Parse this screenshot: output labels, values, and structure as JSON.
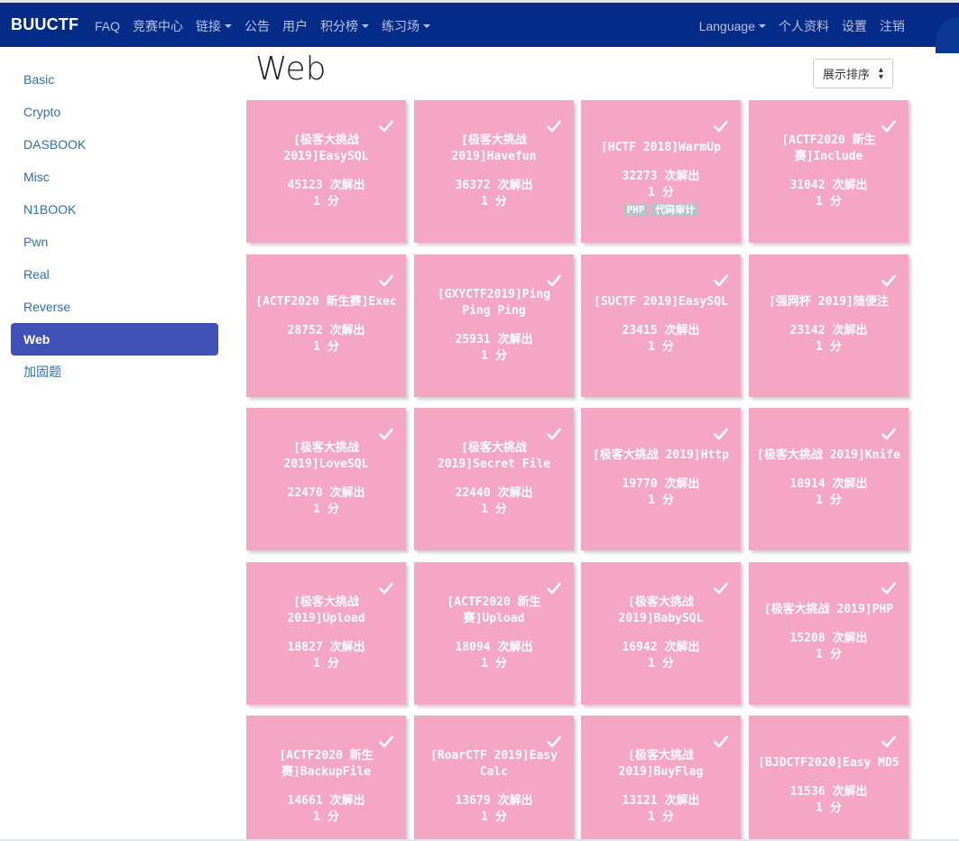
{
  "nav": {
    "brand": "BUUCTF",
    "left": [
      {
        "label": "FAQ",
        "dropdown": false
      },
      {
        "label": "竞赛中心",
        "dropdown": false
      },
      {
        "label": "链接",
        "dropdown": true
      },
      {
        "label": "公告",
        "dropdown": false
      },
      {
        "label": "用户",
        "dropdown": false
      },
      {
        "label": "积分榜",
        "dropdown": true
      },
      {
        "label": "练习场",
        "dropdown": true
      }
    ],
    "right": [
      {
        "label": "Language",
        "dropdown": true
      },
      {
        "label": "个人资料",
        "dropdown": false
      },
      {
        "label": "设置",
        "dropdown": false
      },
      {
        "label": "注销",
        "dropdown": false
      }
    ]
  },
  "sidebar": {
    "items": [
      {
        "label": "Basic",
        "active": false
      },
      {
        "label": "Crypto",
        "active": false
      },
      {
        "label": "DASBOOK",
        "active": false
      },
      {
        "label": "Misc",
        "active": false
      },
      {
        "label": "N1BOOK",
        "active": false
      },
      {
        "label": "Pwn",
        "active": false
      },
      {
        "label": "Real",
        "active": false
      },
      {
        "label": "Reverse",
        "active": false
      },
      {
        "label": "Web",
        "active": true
      },
      {
        "label": "加固题",
        "active": false
      }
    ]
  },
  "main": {
    "title": "Web",
    "sort_label": "展示排序"
  },
  "colors": {
    "navbar": "#052b88",
    "card": "#f4a6c2",
    "active": "#3f51b5",
    "tag": "#b8c2cc"
  },
  "challenges": [
    {
      "name": "[极客大挑战 2019]EasySQL",
      "solves": "45123 次解出",
      "points": "1 分",
      "tags": []
    },
    {
      "name": "[极客大挑战 2019]Havefun",
      "solves": "36372 次解出",
      "points": "1 分",
      "tags": []
    },
    {
      "name": "[HCTF 2018]WarmUp",
      "solves": "32273 次解出",
      "points": "1 分",
      "tags": [
        "PHP",
        "代码审计"
      ]
    },
    {
      "name": "[ACTF2020 新生赛]Include",
      "solves": "31042 次解出",
      "points": "1 分",
      "tags": []
    },
    {
      "name": "[ACTF2020 新生赛]Exec",
      "solves": "28752 次解出",
      "points": "1 分",
      "tags": []
    },
    {
      "name": "[GXYCTF2019]Ping Ping Ping",
      "solves": "25931 次解出",
      "points": "1 分",
      "tags": []
    },
    {
      "name": "[SUCTF 2019]EasySQL",
      "solves": "23415 次解出",
      "points": "1 分",
      "tags": []
    },
    {
      "name": "[强网杯 2019]随便注",
      "solves": "23142 次解出",
      "points": "1 分",
      "tags": []
    },
    {
      "name": "[极客大挑战 2019]LoveSQL",
      "solves": "22470 次解出",
      "points": "1 分",
      "tags": []
    },
    {
      "name": "[极客大挑战 2019]Secret File",
      "solves": "22440 次解出",
      "points": "1 分",
      "tags": []
    },
    {
      "name": "[极客大挑战 2019]Http",
      "solves": "19770 次解出",
      "points": "1 分",
      "tags": []
    },
    {
      "name": "[极客大挑战 2019]Knife",
      "solves": "18914 次解出",
      "points": "1 分",
      "tags": []
    },
    {
      "name": "[极客大挑战 2019]Upload",
      "solves": "18827 次解出",
      "points": "1 分",
      "tags": []
    },
    {
      "name": "[ACTF2020 新生赛]Upload",
      "solves": "18094 次解出",
      "points": "1 分",
      "tags": []
    },
    {
      "name": "[极客大挑战 2019]BabySQL",
      "solves": "16942 次解出",
      "points": "1 分",
      "tags": []
    },
    {
      "name": "[极客大挑战 2019]PHP",
      "solves": "15208 次解出",
      "points": "1 分",
      "tags": []
    },
    {
      "name": "[ACTF2020 新生赛]BackupFile",
      "solves": "14661 次解出",
      "points": "1 分",
      "tags": []
    },
    {
      "name": "[RoarCTF 2019]Easy Calc",
      "solves": "13679 次解出",
      "points": "1 分",
      "tags": []
    },
    {
      "name": "[极客大挑战 2019]BuyFlag",
      "solves": "13121 次解出",
      "points": "1 分",
      "tags": []
    },
    {
      "name": "[BJDCTF2020]Easy MD5",
      "solves": "11536 次解出",
      "points": "1 分",
      "tags": []
    }
  ]
}
